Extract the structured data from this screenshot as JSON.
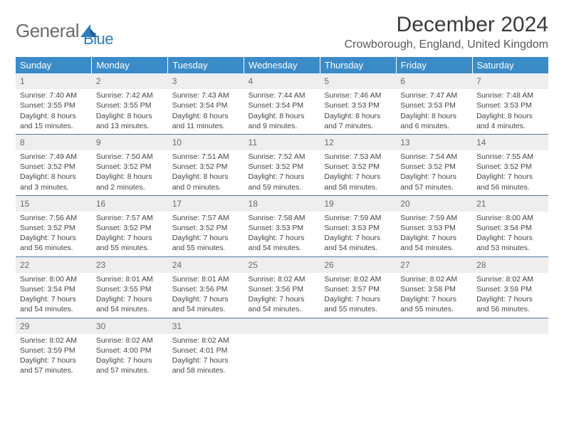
{
  "logo": {
    "text1": "General",
    "text2": "Blue"
  },
  "title": "December 2024",
  "location": "Crowborough, England, United Kingdom",
  "header_bg": "#3b8bc9",
  "daynum_bg": "#eeeeee",
  "border_color": "#4a7ba8",
  "weekdays": [
    "Sunday",
    "Monday",
    "Tuesday",
    "Wednesday",
    "Thursday",
    "Friday",
    "Saturday"
  ],
  "days": [
    {
      "n": "1",
      "sr": "Sunrise: 7:40 AM",
      "ss": "Sunset: 3:55 PM",
      "dl1": "Daylight: 8 hours",
      "dl2": "and 15 minutes."
    },
    {
      "n": "2",
      "sr": "Sunrise: 7:42 AM",
      "ss": "Sunset: 3:55 PM",
      "dl1": "Daylight: 8 hours",
      "dl2": "and 13 minutes."
    },
    {
      "n": "3",
      "sr": "Sunrise: 7:43 AM",
      "ss": "Sunset: 3:54 PM",
      "dl1": "Daylight: 8 hours",
      "dl2": "and 11 minutes."
    },
    {
      "n": "4",
      "sr": "Sunrise: 7:44 AM",
      "ss": "Sunset: 3:54 PM",
      "dl1": "Daylight: 8 hours",
      "dl2": "and 9 minutes."
    },
    {
      "n": "5",
      "sr": "Sunrise: 7:46 AM",
      "ss": "Sunset: 3:53 PM",
      "dl1": "Daylight: 8 hours",
      "dl2": "and 7 minutes."
    },
    {
      "n": "6",
      "sr": "Sunrise: 7:47 AM",
      "ss": "Sunset: 3:53 PM",
      "dl1": "Daylight: 8 hours",
      "dl2": "and 6 minutes."
    },
    {
      "n": "7",
      "sr": "Sunrise: 7:48 AM",
      "ss": "Sunset: 3:53 PM",
      "dl1": "Daylight: 8 hours",
      "dl2": "and 4 minutes."
    },
    {
      "n": "8",
      "sr": "Sunrise: 7:49 AM",
      "ss": "Sunset: 3:52 PM",
      "dl1": "Daylight: 8 hours",
      "dl2": "and 3 minutes."
    },
    {
      "n": "9",
      "sr": "Sunrise: 7:50 AM",
      "ss": "Sunset: 3:52 PM",
      "dl1": "Daylight: 8 hours",
      "dl2": "and 2 minutes."
    },
    {
      "n": "10",
      "sr": "Sunrise: 7:51 AM",
      "ss": "Sunset: 3:52 PM",
      "dl1": "Daylight: 8 hours",
      "dl2": "and 0 minutes."
    },
    {
      "n": "11",
      "sr": "Sunrise: 7:52 AM",
      "ss": "Sunset: 3:52 PM",
      "dl1": "Daylight: 7 hours",
      "dl2": "and 59 minutes."
    },
    {
      "n": "12",
      "sr": "Sunrise: 7:53 AM",
      "ss": "Sunset: 3:52 PM",
      "dl1": "Daylight: 7 hours",
      "dl2": "and 58 minutes."
    },
    {
      "n": "13",
      "sr": "Sunrise: 7:54 AM",
      "ss": "Sunset: 3:52 PM",
      "dl1": "Daylight: 7 hours",
      "dl2": "and 57 minutes."
    },
    {
      "n": "14",
      "sr": "Sunrise: 7:55 AM",
      "ss": "Sunset: 3:52 PM",
      "dl1": "Daylight: 7 hours",
      "dl2": "and 56 minutes."
    },
    {
      "n": "15",
      "sr": "Sunrise: 7:56 AM",
      "ss": "Sunset: 3:52 PM",
      "dl1": "Daylight: 7 hours",
      "dl2": "and 56 minutes."
    },
    {
      "n": "16",
      "sr": "Sunrise: 7:57 AM",
      "ss": "Sunset: 3:52 PM",
      "dl1": "Daylight: 7 hours",
      "dl2": "and 55 minutes."
    },
    {
      "n": "17",
      "sr": "Sunrise: 7:57 AM",
      "ss": "Sunset: 3:52 PM",
      "dl1": "Daylight: 7 hours",
      "dl2": "and 55 minutes."
    },
    {
      "n": "18",
      "sr": "Sunrise: 7:58 AM",
      "ss": "Sunset: 3:53 PM",
      "dl1": "Daylight: 7 hours",
      "dl2": "and 54 minutes."
    },
    {
      "n": "19",
      "sr": "Sunrise: 7:59 AM",
      "ss": "Sunset: 3:53 PM",
      "dl1": "Daylight: 7 hours",
      "dl2": "and 54 minutes."
    },
    {
      "n": "20",
      "sr": "Sunrise: 7:59 AM",
      "ss": "Sunset: 3:53 PM",
      "dl1": "Daylight: 7 hours",
      "dl2": "and 54 minutes."
    },
    {
      "n": "21",
      "sr": "Sunrise: 8:00 AM",
      "ss": "Sunset: 3:54 PM",
      "dl1": "Daylight: 7 hours",
      "dl2": "and 53 minutes."
    },
    {
      "n": "22",
      "sr": "Sunrise: 8:00 AM",
      "ss": "Sunset: 3:54 PM",
      "dl1": "Daylight: 7 hours",
      "dl2": "and 54 minutes."
    },
    {
      "n": "23",
      "sr": "Sunrise: 8:01 AM",
      "ss": "Sunset: 3:55 PM",
      "dl1": "Daylight: 7 hours",
      "dl2": "and 54 minutes."
    },
    {
      "n": "24",
      "sr": "Sunrise: 8:01 AM",
      "ss": "Sunset: 3:56 PM",
      "dl1": "Daylight: 7 hours",
      "dl2": "and 54 minutes."
    },
    {
      "n": "25",
      "sr": "Sunrise: 8:02 AM",
      "ss": "Sunset: 3:56 PM",
      "dl1": "Daylight: 7 hours",
      "dl2": "and 54 minutes."
    },
    {
      "n": "26",
      "sr": "Sunrise: 8:02 AM",
      "ss": "Sunset: 3:57 PM",
      "dl1": "Daylight: 7 hours",
      "dl2": "and 55 minutes."
    },
    {
      "n": "27",
      "sr": "Sunrise: 8:02 AM",
      "ss": "Sunset: 3:58 PM",
      "dl1": "Daylight: 7 hours",
      "dl2": "and 55 minutes."
    },
    {
      "n": "28",
      "sr": "Sunrise: 8:02 AM",
      "ss": "Sunset: 3:59 PM",
      "dl1": "Daylight: 7 hours",
      "dl2": "and 56 minutes."
    },
    {
      "n": "29",
      "sr": "Sunrise: 8:02 AM",
      "ss": "Sunset: 3:59 PM",
      "dl1": "Daylight: 7 hours",
      "dl2": "and 57 minutes."
    },
    {
      "n": "30",
      "sr": "Sunrise: 8:02 AM",
      "ss": "Sunset: 4:00 PM",
      "dl1": "Daylight: 7 hours",
      "dl2": "and 57 minutes."
    },
    {
      "n": "31",
      "sr": "Sunrise: 8:02 AM",
      "ss": "Sunset: 4:01 PM",
      "dl1": "Daylight: 7 hours",
      "dl2": "and 58 minutes."
    }
  ],
  "trailing_empty": 4
}
